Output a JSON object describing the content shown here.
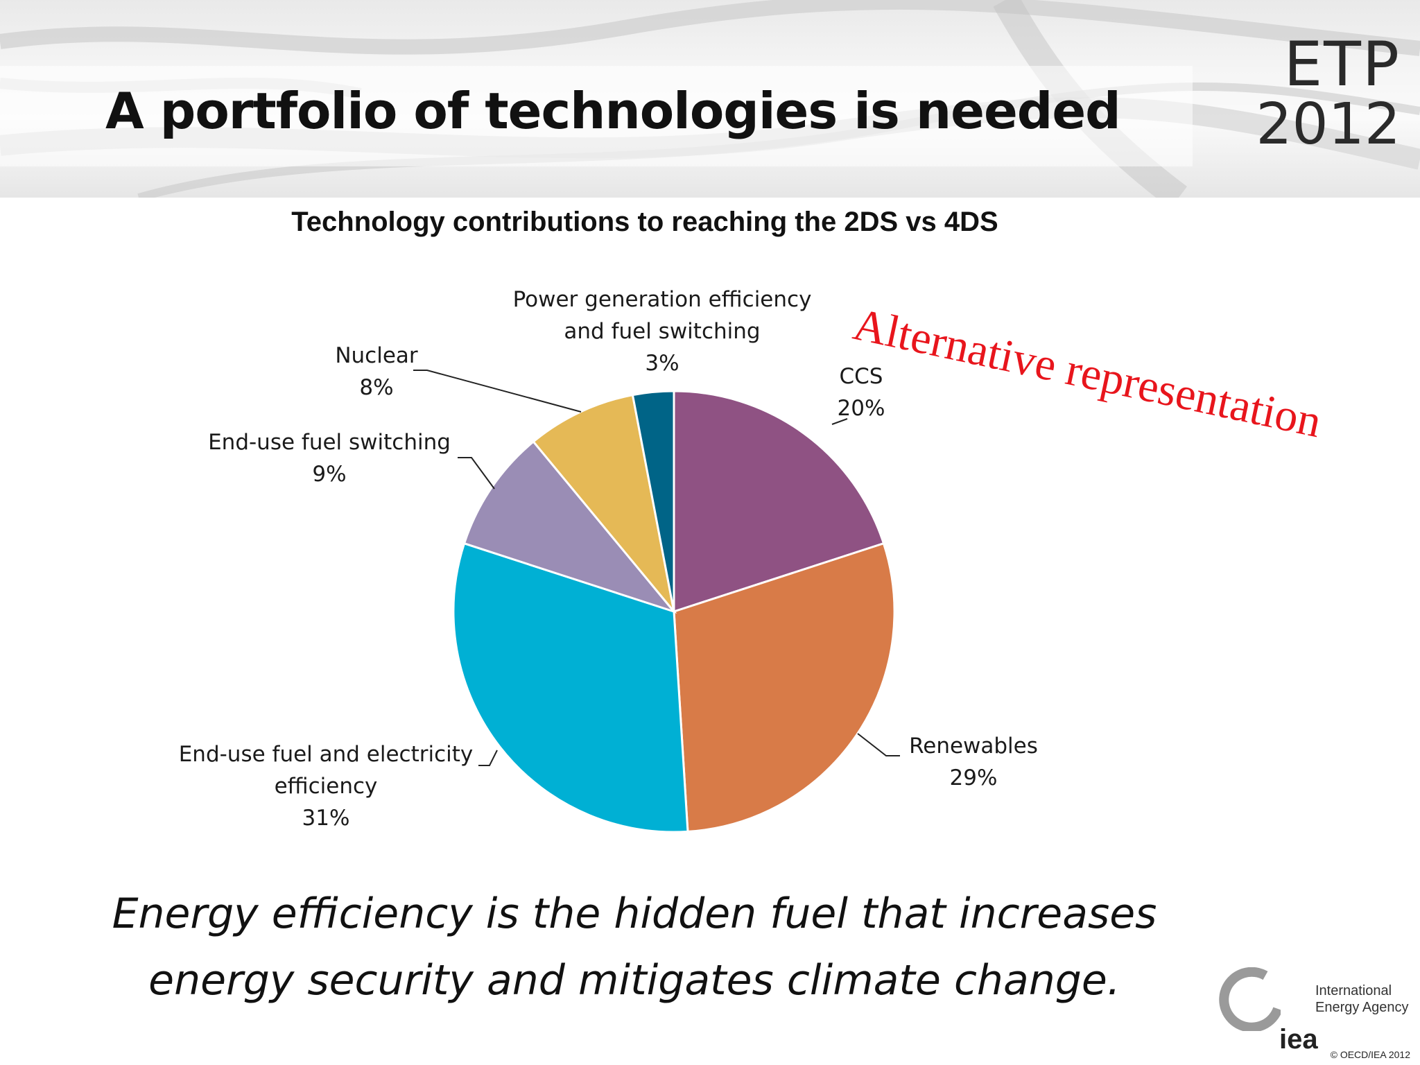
{
  "slide": {
    "title": "A portfolio of technologies is needed",
    "logo_line1": "ETP",
    "logo_line2": "2012",
    "stamp": "Alternative representation",
    "tagline_line1": "Energy efficiency is the hidden fuel that increases",
    "tagline_line2": "energy security and mitigates climate change.",
    "iea_short": "iea",
    "iea_line1": "International",
    "iea_line2": "Energy Agency",
    "copyright": "© OECD/IEA 2012"
  },
  "chart_data": {
    "type": "pie",
    "title": "Technology contributions to reaching the 2DS vs 4DS",
    "slices": [
      {
        "lines": [
          "CCS"
        ],
        "value": 20,
        "label": "20%",
        "color": "#8f5283"
      },
      {
        "lines": [
          "Renewables"
        ],
        "value": 29,
        "label": "29%",
        "color": "#d87b48"
      },
      {
        "lines": [
          "End-use fuel and electricity",
          "efficiency"
        ],
        "value": 31,
        "label": "31%",
        "color": "#00b0d4"
      },
      {
        "lines": [
          "End-use fuel switching"
        ],
        "value": 9,
        "label": "9%",
        "color": "#9a8db5"
      },
      {
        "lines": [
          "Nuclear"
        ],
        "value": 8,
        "label": "8%",
        "color": "#e5b956"
      },
      {
        "lines": [
          "Power generation efficiency",
          "and fuel switching"
        ],
        "value": 3,
        "label": "3%",
        "color": "#006487"
      }
    ]
  }
}
